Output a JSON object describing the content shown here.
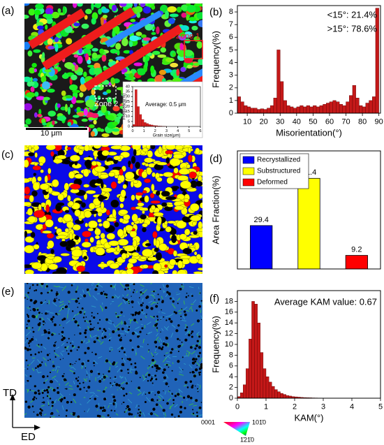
{
  "figure": {
    "panel_labels": [
      "(a)",
      "(b)",
      "(c)",
      "(d)",
      "(e)",
      "(f)"
    ],
    "zone_labels": [
      "Zone 1",
      "Zone 2"
    ],
    "scale_bar": "10 μm",
    "axes_directions": [
      "TD",
      "ED"
    ],
    "color_key": [
      "0001",
      "101̄0",
      "1̄21̄0"
    ]
  },
  "chart_data": [
    {
      "type": "histogram",
      "xlabel": "Grain size(μm)",
      "ylabel": "Frequency(%)",
      "annotations": [
        "Average: 0.5 μm"
      ],
      "bins": [
        0,
        0.2,
        0.4,
        0.6,
        0.8,
        1.0,
        1.2,
        1.4,
        1.6,
        1.8,
        2.0,
        2.2,
        2.4,
        2.6,
        2.8,
        3.0
      ],
      "values": [
        2,
        37,
        20,
        12,
        7,
        4,
        3,
        2,
        1.5,
        1,
        0.8,
        0.5,
        0.4,
        0.3,
        0.2
      ],
      "color": "#d42020",
      "xlim": [
        0,
        6
      ],
      "xticks": [
        0,
        1,
        2,
        3,
        4,
        5,
        6
      ],
      "ylim": [
        0,
        40
      ],
      "yticks": [
        0,
        5,
        10,
        15,
        20,
        25,
        30,
        35,
        40
      ]
    },
    {
      "type": "histogram",
      "xlabel": "Misorientation(°)",
      "ylabel": "Frequency(%)",
      "annotations": [
        "<15°: 21.4%",
        ">15°: 78.6%"
      ],
      "bins": [
        4,
        6,
        8,
        10,
        12,
        14,
        16,
        18,
        20,
        22,
        24,
        26,
        28,
        30,
        32,
        34,
        36,
        38,
        40,
        42,
        44,
        46,
        48,
        50,
        52,
        54,
        56,
        58,
        60,
        62,
        64,
        66,
        68,
        70,
        72,
        74,
        76,
        78,
        80,
        82,
        84,
        86,
        88,
        90
      ],
      "values": [
        1.3,
        0.9,
        0.6,
        0.5,
        0.4,
        0.4,
        0.3,
        0.35,
        0.3,
        0.4,
        0.6,
        1.2,
        5.0,
        2.5,
        1.0,
        0.6,
        0.5,
        0.4,
        0.5,
        0.6,
        0.5,
        0.6,
        0.5,
        0.6,
        0.5,
        0.6,
        0.7,
        0.8,
        0.9,
        1.0,
        0.9,
        0.7,
        0.6,
        0.9,
        1.4,
        2.2,
        1.2,
        0.6,
        0.5,
        0.8,
        1.0,
        1.3,
        8.3
      ],
      "color": "#c41818",
      "xlim": [
        4,
        91
      ],
      "xticks": [
        10,
        20,
        30,
        40,
        50,
        60,
        70,
        80,
        90
      ],
      "ylim": [
        0,
        8.5
      ],
      "yticks": [
        0,
        1,
        2,
        3,
        4,
        5,
        6,
        7,
        8
      ]
    },
    {
      "type": "bar",
      "ylabel": "Area Fraction(%)",
      "categories": [
        "Recrystallized",
        "Substructured",
        "Deformed"
      ],
      "values": [
        29.4,
        61.4,
        9.2
      ],
      "colors": [
        "#0000ff",
        "#ffff00",
        "#ff0000"
      ],
      "ylim": [
        0,
        80
      ]
    },
    {
      "type": "histogram",
      "xlabel": "KAM(°)",
      "ylabel": "Frequency(%)",
      "annotations": [
        "Average KAM value: 0.67"
      ],
      "bins": [
        0,
        0.1,
        0.2,
        0.3,
        0.4,
        0.5,
        0.6,
        0.7,
        0.8,
        0.9,
        1.0,
        1.1,
        1.2,
        1.3,
        1.4,
        1.5,
        1.6,
        1.7,
        1.8,
        1.9,
        2.0,
        2.1,
        2.2,
        2.3,
        2.4,
        2.5,
        2.6,
        2.7,
        2.8,
        2.9,
        3.0
      ],
      "values": [
        0.3,
        1,
        2.5,
        5.5,
        11,
        18,
        17.5,
        14,
        8.5,
        5.5,
        4,
        3,
        2.2,
        1.6,
        1.2,
        0.9,
        0.7,
        0.5,
        0.4,
        0.3,
        0.25,
        0.2,
        0.15,
        0.12,
        0.1,
        0.08,
        0.06,
        0.05,
        0.04,
        0.03
      ],
      "color": "#c41818",
      "xlim": [
        0,
        5
      ],
      "xticks": [
        0,
        1,
        2,
        3,
        4,
        5
      ],
      "ylim": [
        0,
        20
      ],
      "yticks": [
        0,
        2,
        4,
        6,
        8,
        10,
        12,
        14,
        16,
        18
      ]
    }
  ]
}
